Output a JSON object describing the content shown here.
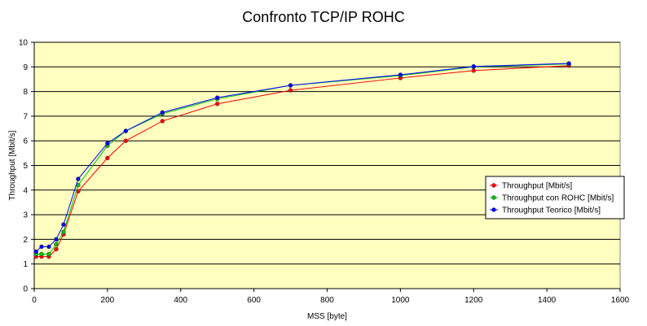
{
  "chart_data": {
    "type": "line",
    "title": "Confronto TCP/IP ROHC",
    "xlabel": "MSS [byte]",
    "ylabel": "Throughput [Mbit/s]",
    "xlim": [
      0,
      1600
    ],
    "ylim": [
      0,
      10
    ],
    "xticks": [
      0,
      200,
      400,
      600,
      800,
      1000,
      1200,
      1400,
      1600
    ],
    "yticks": [
      0,
      1,
      2,
      3,
      4,
      5,
      6,
      7,
      8,
      9,
      10
    ],
    "grid": "horizontal",
    "legend_position": "right",
    "plot_background": "#ffffc0",
    "series": [
      {
        "name": "Throughput [Mbit/s]",
        "color": "#ff0000",
        "points": [
          [
            5,
            1.3
          ],
          [
            20,
            1.3
          ],
          [
            40,
            1.3
          ],
          [
            60,
            1.6
          ],
          [
            80,
            2.2
          ],
          [
            120,
            3.95
          ],
          [
            200,
            5.3
          ],
          [
            250,
            6.0
          ],
          [
            350,
            6.8
          ],
          [
            500,
            7.5
          ],
          [
            700,
            8.05
          ],
          [
            1000,
            8.55
          ],
          [
            1200,
            8.85
          ],
          [
            1460,
            9.05
          ]
        ]
      },
      {
        "name": "Throughput con ROHC [Mbit/s]",
        "color": "#00c000",
        "points": [
          [
            5,
            1.4
          ],
          [
            20,
            1.4
          ],
          [
            40,
            1.4
          ],
          [
            60,
            1.8
          ],
          [
            80,
            2.3
          ],
          [
            120,
            4.2
          ],
          [
            200,
            5.8
          ],
          [
            250,
            6.4
          ],
          [
            350,
            7.1
          ],
          [
            500,
            7.7
          ],
          [
            700,
            8.25
          ],
          [
            1000,
            8.65
          ],
          [
            1200,
            9.0
          ],
          [
            1460,
            9.12
          ]
        ]
      },
      {
        "name": "Throughput Teorico [Mbit/s]",
        "color": "#0000ff",
        "points": [
          [
            5,
            1.5
          ],
          [
            20,
            1.7
          ],
          [
            40,
            1.7
          ],
          [
            60,
            2.0
          ],
          [
            80,
            2.6
          ],
          [
            120,
            4.45
          ],
          [
            200,
            5.9
          ],
          [
            250,
            6.4
          ],
          [
            350,
            7.15
          ],
          [
            500,
            7.75
          ],
          [
            700,
            8.25
          ],
          [
            1000,
            8.68
          ],
          [
            1200,
            9.02
          ],
          [
            1460,
            9.14
          ]
        ]
      }
    ]
  }
}
